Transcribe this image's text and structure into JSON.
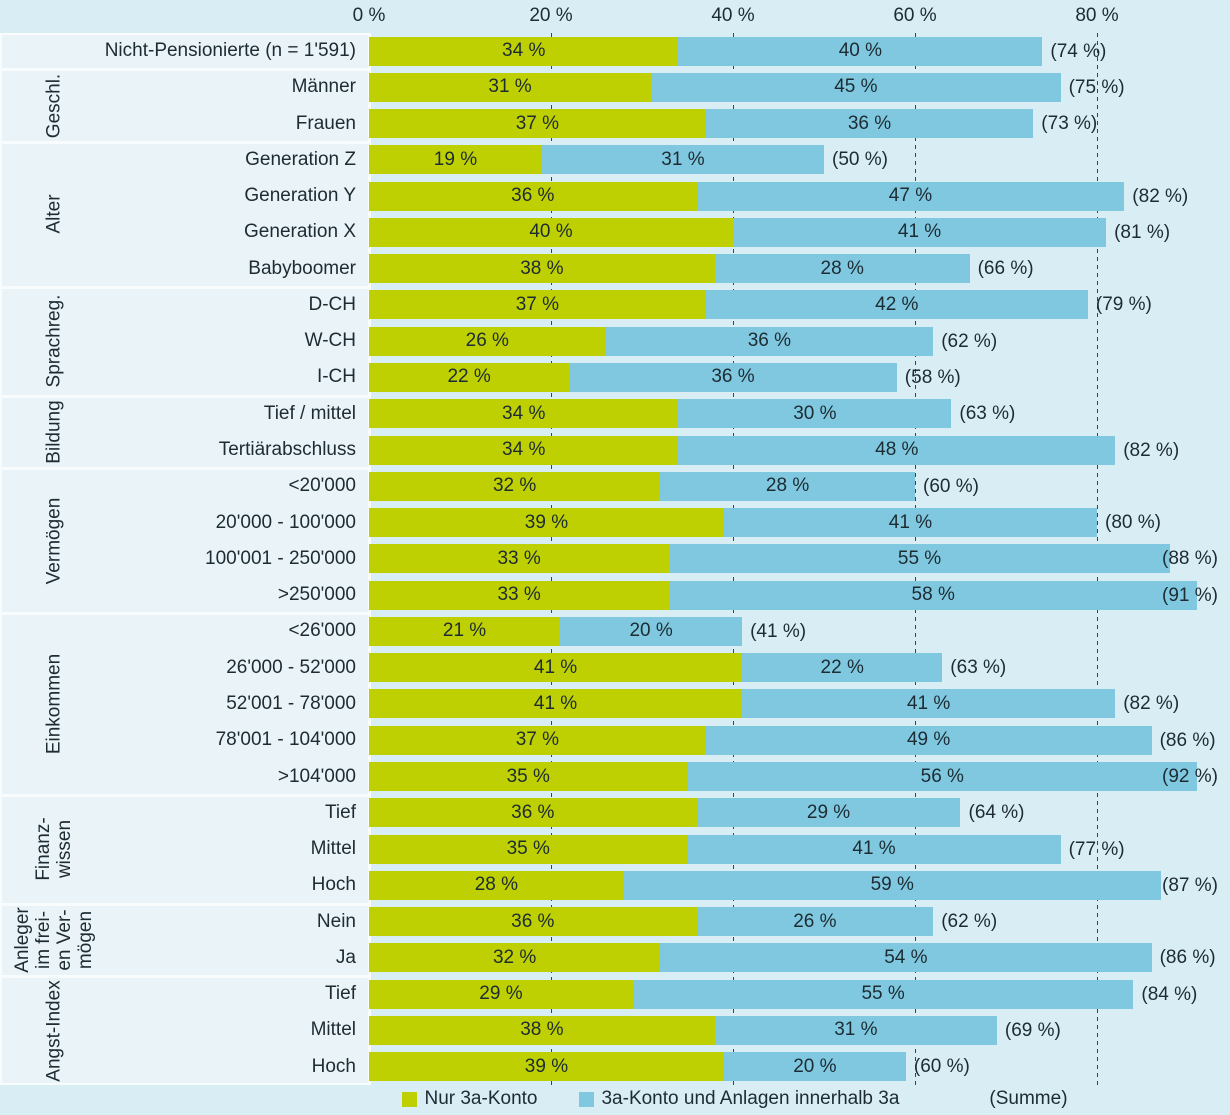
{
  "colors": {
    "green": "#bed002",
    "blue": "#7fc8df",
    "canvas_bg": "#d9edf4",
    "panel_bg": "#e9f3f8",
    "separator": "#f8fcfd",
    "text": "#1d2b33",
    "grid": "#37464e"
  },
  "axis": {
    "ticks": [
      "0 %",
      "20 %",
      "40 %",
      "60 %",
      "80 %"
    ],
    "tick_values": [
      0,
      20,
      40,
      60,
      80
    ]
  },
  "legend": {
    "items": [
      {
        "label": "Nur 3a-Konto",
        "color": "green"
      },
      {
        "label": "3a-Konto und Anlagen innerhalb 3a",
        "color": "blue"
      },
      {
        "label": "(Summe)",
        "color": null
      }
    ]
  },
  "chart_data": {
    "type": "bar",
    "orientation": "horizontal",
    "stacked": true,
    "xlim": [
      0,
      100
    ],
    "grid": "dashed-vertical-at-20-40-60-80",
    "legend_position": "bottom",
    "series_names": [
      "Nur 3a-Konto",
      "3a-Konto und Anlagen innerhalb 3a"
    ],
    "value_suffix": " %",
    "sum_name": "(Summe)",
    "groups": [
      {
        "group": "",
        "rows": [
          {
            "label": "Nicht-Pensionierte (n = 1'591)",
            "green": 34,
            "blue": 40,
            "sum": 74
          }
        ]
      },
      {
        "group": "Geschl.",
        "rows": [
          {
            "label": "Männer",
            "green": 31,
            "blue": 45,
            "sum": 75
          },
          {
            "label": "Frauen",
            "green": 37,
            "blue": 36,
            "sum": 73
          }
        ]
      },
      {
        "group": "Alter",
        "rows": [
          {
            "label": "Generation Z",
            "green": 19,
            "blue": 31,
            "sum": 50
          },
          {
            "label": "Generation Y",
            "green": 36,
            "blue": 47,
            "sum": 82
          },
          {
            "label": "Generation X",
            "green": 40,
            "blue": 41,
            "sum": 81
          },
          {
            "label": "Babyboomer",
            "green": 38,
            "blue": 28,
            "sum": 66
          }
        ]
      },
      {
        "group": "Sprachreg.",
        "rows": [
          {
            "label": "D-CH",
            "green": 37,
            "blue": 42,
            "sum": 79
          },
          {
            "label": "W-CH",
            "green": 26,
            "blue": 36,
            "sum": 62
          },
          {
            "label": "I-CH",
            "green": 22,
            "blue": 36,
            "sum": 58
          }
        ]
      },
      {
        "group": "Bildung",
        "rows": [
          {
            "label": "Tief / mittel",
            "green": 34,
            "blue": 30,
            "sum": 63
          },
          {
            "label": "Tertiärabschluss",
            "green": 34,
            "blue": 48,
            "sum": 82
          }
        ]
      },
      {
        "group": "Vermögen",
        "rows": [
          {
            "label": "<20'000",
            "green": 32,
            "blue": 28,
            "sum": 60
          },
          {
            "label": "20'000 - 100'000",
            "green": 39,
            "blue": 41,
            "sum": 80
          },
          {
            "label": "100'001 - 250'000",
            "green": 33,
            "blue": 55,
            "sum": 88
          },
          {
            "label": ">250'000",
            "green": 33,
            "blue": 58,
            "sum": 91
          }
        ]
      },
      {
        "group": "Einkommen",
        "rows": [
          {
            "label": "<26'000",
            "green": 21,
            "blue": 20,
            "sum": 41
          },
          {
            "label": "26'000 - 52'000",
            "green": 41,
            "blue": 22,
            "sum": 63
          },
          {
            "label": "52'001 - 78'000",
            "green": 41,
            "blue": 41,
            "sum": 82
          },
          {
            "label": "78'001 - 104'000",
            "green": 37,
            "blue": 49,
            "sum": 86
          },
          {
            "label": ">104'000",
            "green": 35,
            "blue": 56,
            "sum": 92
          }
        ]
      },
      {
        "group": "Finanz-\nwissen",
        "rows": [
          {
            "label": "Tief",
            "green": 36,
            "blue": 29,
            "sum": 64
          },
          {
            "label": "Mittel",
            "green": 35,
            "blue": 41,
            "sum": 77
          },
          {
            "label": "Hoch",
            "green": 28,
            "blue": 59,
            "sum": 87
          }
        ]
      },
      {
        "group": "Anleger\nim frei-\nen Ver-\nmögen",
        "rows": [
          {
            "label": "Nein",
            "green": 36,
            "blue": 26,
            "sum": 62
          },
          {
            "label": "Ja",
            "green": 32,
            "blue": 54,
            "sum": 86
          }
        ]
      },
      {
        "group": "Angst-Index",
        "rows": [
          {
            "label": "Tief",
            "green": 29,
            "blue": 55,
            "sum": 84
          },
          {
            "label": "Mittel",
            "green": 38,
            "blue": 31,
            "sum": 69
          },
          {
            "label": "Hoch",
            "green": 39,
            "blue": 20,
            "sum": 60
          }
        ]
      }
    ]
  }
}
